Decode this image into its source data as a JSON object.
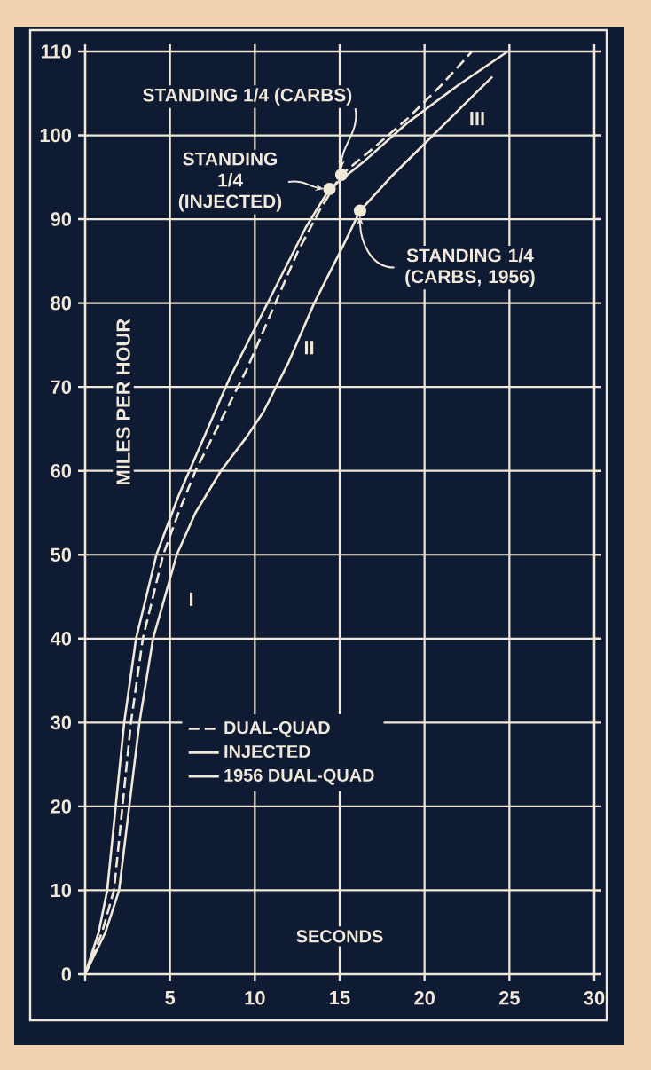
{
  "chart_data": {
    "type": "line",
    "xlabel": "SECONDS",
    "ylabel": "MILES PER HOUR",
    "xlim": [
      0,
      30
    ],
    "ylim": [
      0,
      110
    ],
    "xticks": [
      {
        "value": 0,
        "label": null
      },
      5,
      10,
      15,
      20,
      25,
      30
    ],
    "yticks": [
      0,
      10,
      20,
      30,
      40,
      50,
      60,
      70,
      80,
      90,
      100,
      110
    ],
    "grid": true,
    "legend": "left",
    "marker": "none",
    "series": [
      {
        "name": "DUAL-QUAD",
        "color": "#f0e8d8",
        "line_style": "dashed",
        "x": [
          0,
          1,
          1.7,
          2.2,
          2.7,
          3.4,
          4.6,
          5.5,
          6.5,
          8,
          9.5,
          11,
          12.5,
          13.8,
          15.1,
          17,
          19,
          21,
          22.8
        ],
        "values": [
          0,
          5,
          10,
          20,
          30,
          40,
          50,
          55,
          60,
          66,
          72,
          79,
          86,
          91,
          95.3,
          98.5,
          102,
          106,
          110
        ]
      },
      {
        "name": "INJECTED",
        "color": "#f0e8d8",
        "line_style": "solid",
        "x": [
          0,
          0.8,
          1.3,
          1.8,
          2.3,
          3.0,
          4.2,
          5.5,
          7,
          8.5,
          10,
          11.5,
          13,
          14.4,
          16.5,
          19,
          22,
          24.9
        ],
        "values": [
          0,
          5,
          10,
          20,
          30,
          40,
          50,
          57,
          64,
          71,
          77,
          83,
          89,
          93.6,
          97,
          101.5,
          106,
          110
        ]
      },
      {
        "name": "1956 DUAL-QUAD",
        "color": "#f0e8d8",
        "line_style": "solid",
        "x": [
          0,
          1.2,
          2,
          2.6,
          3.2,
          4,
          5.4,
          6.5,
          8,
          9.5,
          10.5,
          12,
          13.5,
          15,
          16.2,
          18,
          20,
          22,
          24
        ],
        "values": [
          0,
          5,
          10,
          20,
          30,
          40,
          50,
          55,
          60,
          64,
          67,
          73,
          80,
          86,
          91,
          95,
          99,
          103,
          107
        ]
      }
    ],
    "annotations": [
      {
        "text": "STANDING 1/4 (CARBS)",
        "x": 15.1,
        "y": 95.3
      },
      {
        "text": "STANDING 1/4 (INJECTED)",
        "x": 14.4,
        "y": 93.6
      },
      {
        "text": "STANDING 1/4 (CARBS, 1956)",
        "x": 16.2,
        "y": 91
      },
      {
        "text": "I",
        "x": 6.25,
        "y": 44.7
      },
      {
        "text": "II",
        "x": 13.2,
        "y": 74.7
      },
      {
        "text": "III",
        "x": 23.1,
        "y": 102
      }
    ]
  }
}
